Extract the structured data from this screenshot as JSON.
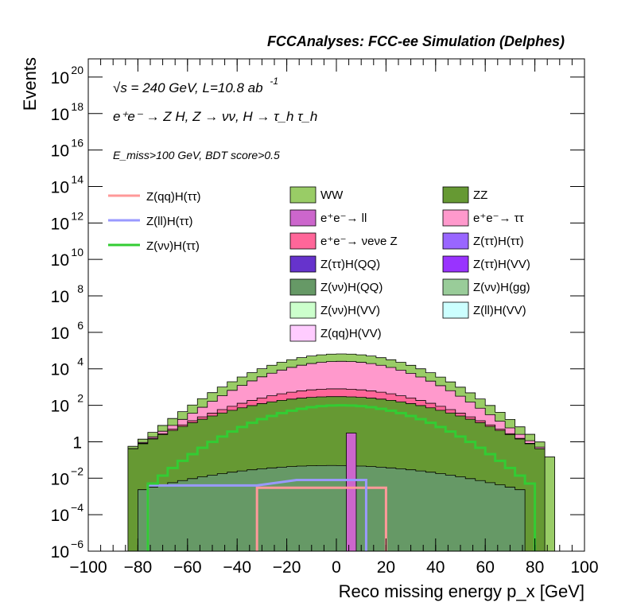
{
  "header": {
    "text": "FCCAnalyses: FCC-ee Simulation (Delphes)"
  },
  "info": {
    "line1": "√s = 240 GeV, L=10.8 ab",
    "line1_sup": "-1",
    "line2": "e⁺e⁻ → Z H, Z → νν, H → τ_h τ_h",
    "line3": "E_miss>100 GeV, BDT score>0.5"
  },
  "chart_data": {
    "type": "histogram",
    "xlabel": "Reco missing energy p_x [GeV]",
    "ylabel": "Events",
    "xlim": [
      -100,
      100
    ],
    "ylim": [
      1e-06,
      1e+21
    ],
    "log_y": true,
    "x_ticks": [
      "−100",
      "−80",
      "−60",
      "−40",
      "−20",
      "0",
      "20",
      "40",
      "60",
      "80",
      "100"
    ],
    "y_ticks": [
      {
        "base": "10",
        "exp": "−6",
        "value": 1e-06
      },
      {
        "base": "10",
        "exp": "−4",
        "value": 0.0001
      },
      {
        "base": "10",
        "exp": "−2",
        "value": 0.01
      },
      {
        "base": "1",
        "exp": "",
        "value": 1
      },
      {
        "base": "10",
        "exp": "2",
        "value": 100.0
      },
      {
        "base": "10",
        "exp": "4",
        "value": 10000.0
      },
      {
        "base": "10",
        "exp": "6",
        "value": 1000000.0
      },
      {
        "base": "10",
        "exp": "8",
        "value": 100000000.0
      },
      {
        "base": "10",
        "exp": "10",
        "value": 10000000000.0
      },
      {
        "base": "10",
        "exp": "12",
        "value": 1000000000000.0
      },
      {
        "base": "10",
        "exp": "14",
        "value": 100000000000000.0
      },
      {
        "base": "10",
        "exp": "16",
        "value": 1e+16
      },
      {
        "base": "10",
        "exp": "18",
        "value": 1e+18
      },
      {
        "base": "10",
        "exp": "20",
        "value": 1e+20
      }
    ],
    "bin_width": 4,
    "stacked": [
      {
        "name": "WW",
        "color": "#99cc66",
        "x_from": -84,
        "x_to": 88,
        "peak": 40000,
        "edge": 0.08
      },
      {
        "name": "e⁺e⁻→ ττ",
        "color": "#ff99cc",
        "x_from": -80,
        "x_to": 84,
        "peak": 25000,
        "edge": 0.05
      },
      {
        "name": "e⁺e⁻→ νeνe Z",
        "color": "#ff6699",
        "x_from": -80,
        "x_to": 80,
        "peak": 500,
        "edge": 0.03
      },
      {
        "name": "ZZ",
        "color": "#669933",
        "x_from": -84,
        "x_to": 84,
        "peak": 300,
        "edge": 0.3
      },
      {
        "name": "Z(νν)H(QQ)",
        "color": "#669966",
        "x_from": -80,
        "x_to": 76,
        "peak": 0.05,
        "edge": 0.002
      }
    ],
    "spikes": [
      {
        "name": "e⁺e⁻→ ll",
        "color": "#cc66cc",
        "x": 4,
        "value": 3
      }
    ],
    "lines": [
      {
        "name": "Z(qq)H(ττ)",
        "color": "#ff9999",
        "points": [
          [
            -32,
            0.003
          ],
          [
            -28,
            0.003
          ],
          [
            16,
            0.003
          ],
          [
            20,
            0.003
          ]
        ]
      },
      {
        "name": "Z(ll)H(ττ)",
        "color": "#9999ff",
        "points": [
          [
            -76,
            0.004
          ],
          [
            -32,
            0.004
          ],
          [
            -16,
            0.008
          ],
          [
            12,
            0.008
          ]
        ]
      },
      {
        "name": "Z(νν)H(ττ)",
        "color": "#33cc33",
        "peak": 100,
        "x_from": -76,
        "x_to": 80,
        "edge": 0.003
      }
    ]
  },
  "legend_lines": [
    {
      "label": "Z(qq)H(ττ)",
      "color": "#ff9999"
    },
    {
      "label": "Z(ll)H(ττ)",
      "color": "#9999ff"
    },
    {
      "label": "Z(νν)H(ττ)",
      "color": "#33cc33"
    }
  ],
  "legend_boxes": [
    {
      "label": "WW",
      "color": "#99cc66"
    },
    {
      "label": "ZZ",
      "color": "#669933"
    },
    {
      "label": "e⁺e⁻→ ll",
      "color": "#cc66cc"
    },
    {
      "label": "e⁺e⁻→ ττ",
      "color": "#ff99cc"
    },
    {
      "label": "e⁺e⁻→ νeνe Z",
      "color": "#ff6699"
    },
    {
      "label": "Z(ττ)H(ττ)",
      "color": "#9966ff"
    },
    {
      "label": "Z(ττ)H(QQ)",
      "color": "#6633cc"
    },
    {
      "label": "Z(ττ)H(VV)",
      "color": "#9933ff"
    },
    {
      "label": "Z(νν)H(QQ)",
      "color": "#669966"
    },
    {
      "label": "Z(νν)H(gg)",
      "color": "#99cc99"
    },
    {
      "label": "Z(νν)H(VV)",
      "color": "#ccffcc"
    },
    {
      "label": "Z(ll)H(VV)",
      "color": "#ccffff"
    },
    {
      "label": "Z(qq)H(VV)",
      "color": "#ffccff"
    }
  ]
}
